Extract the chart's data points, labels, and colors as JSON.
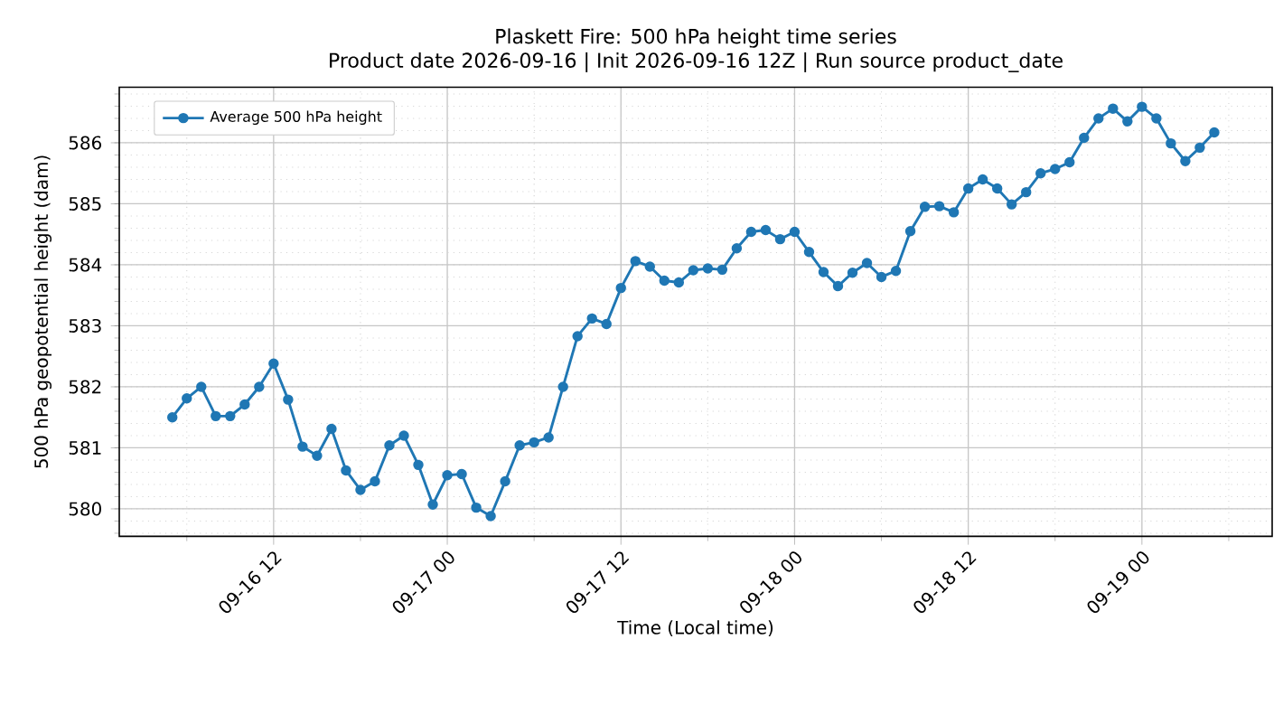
{
  "chart_data": {
    "type": "line",
    "title": "Plaskett Fire: 500 hPa height time series",
    "subtitle": "Product date 2026-09-16 | Init 2026-09-16 12Z | Run source product_date",
    "xlabel": "Time (Local time)",
    "ylabel": "500 hPa geopotential height (dam)",
    "x": [
      "2026-09-16T05:00",
      "2026-09-16T06:00",
      "2026-09-16T07:00",
      "2026-09-16T08:00",
      "2026-09-16T09:00",
      "2026-09-16T10:00",
      "2026-09-16T11:00",
      "2026-09-16T12:00",
      "2026-09-16T13:00",
      "2026-09-16T14:00",
      "2026-09-16T15:00",
      "2026-09-16T16:00",
      "2026-09-16T17:00",
      "2026-09-16T18:00",
      "2026-09-16T19:00",
      "2026-09-16T20:00",
      "2026-09-16T21:00",
      "2026-09-16T22:00",
      "2026-09-16T23:00",
      "2026-09-17T00:00",
      "2026-09-17T01:00",
      "2026-09-17T02:00",
      "2026-09-17T03:00",
      "2026-09-17T04:00",
      "2026-09-17T05:00",
      "2026-09-17T06:00",
      "2026-09-17T07:00",
      "2026-09-17T08:00",
      "2026-09-17T09:00",
      "2026-09-17T10:00",
      "2026-09-17T11:00",
      "2026-09-17T12:00",
      "2026-09-17T13:00",
      "2026-09-17T14:00",
      "2026-09-17T15:00",
      "2026-09-17T16:00",
      "2026-09-17T17:00",
      "2026-09-17T18:00",
      "2026-09-17T19:00",
      "2026-09-17T20:00",
      "2026-09-17T21:00",
      "2026-09-17T22:00",
      "2026-09-17T23:00",
      "2026-09-18T00:00",
      "2026-09-18T01:00",
      "2026-09-18T02:00",
      "2026-09-18T03:00",
      "2026-09-18T04:00",
      "2026-09-18T05:00",
      "2026-09-18T06:00",
      "2026-09-18T07:00",
      "2026-09-18T08:00",
      "2026-09-18T09:00",
      "2026-09-18T10:00",
      "2026-09-18T11:00",
      "2026-09-18T12:00",
      "2026-09-18T13:00",
      "2026-09-18T14:00",
      "2026-09-18T15:00",
      "2026-09-18T16:00",
      "2026-09-18T17:00",
      "2026-09-18T18:00",
      "2026-09-18T19:00",
      "2026-09-18T20:00",
      "2026-09-18T21:00",
      "2026-09-18T22:00",
      "2026-09-18T23:00",
      "2026-09-19T00:00",
      "2026-09-19T01:00",
      "2026-09-19T02:00",
      "2026-09-19T03:00",
      "2026-09-19T04:00",
      "2026-09-19T05:00"
    ],
    "series": [
      {
        "name": "Average 500 hPa height",
        "color": "#1f77b4",
        "values": [
          581.5,
          581.81,
          582.0,
          581.52,
          581.52,
          581.71,
          582.0,
          582.38,
          581.79,
          581.02,
          580.87,
          581.31,
          580.63,
          580.31,
          580.45,
          581.04,
          581.2,
          580.72,
          580.07,
          580.55,
          580.57,
          580.02,
          579.88,
          580.45,
          581.04,
          581.09,
          581.17,
          582.0,
          582.83,
          583.12,
          583.03,
          583.62,
          584.06,
          583.97,
          583.74,
          583.71,
          583.91,
          583.94,
          583.92,
          584.27,
          584.54,
          584.57,
          584.42,
          584.54,
          584.21,
          583.88,
          583.65,
          583.87,
          584.03,
          583.8,
          583.9,
          584.55,
          584.95,
          584.96,
          584.86,
          585.25,
          585.4,
          585.25,
          584.99,
          585.19,
          585.5,
          585.57,
          585.68,
          586.08,
          586.4,
          586.56,
          586.35,
          586.59,
          586.4,
          585.99,
          585.7,
          585.92,
          586.17
        ]
      }
    ],
    "xlim": [
      "2026-09-16T01:20",
      "2026-09-19T09:00"
    ],
    "xticks": [
      {
        "value": "2026-09-16T12:00",
        "label": "09-16 12"
      },
      {
        "value": "2026-09-17T00:00",
        "label": "09-17 00"
      },
      {
        "value": "2026-09-17T12:00",
        "label": "09-17 12"
      },
      {
        "value": "2026-09-18T00:00",
        "label": "09-18 00"
      },
      {
        "value": "2026-09-18T12:00",
        "label": "09-18 12"
      },
      {
        "value": "2026-09-19T00:00",
        "label": "09-19 00"
      }
    ],
    "ylim": [
      579.55,
      586.91
    ],
    "yticks": [
      580,
      581,
      582,
      583,
      584,
      585,
      586
    ],
    "grid": true,
    "legend": "top left",
    "marker": "circle",
    "line_style": "solid"
  }
}
